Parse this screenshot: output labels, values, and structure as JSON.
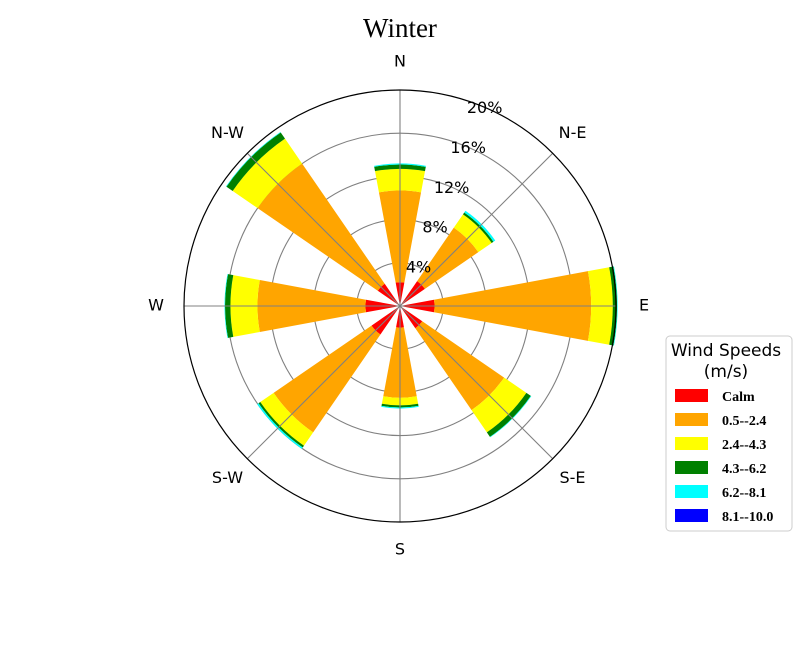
{
  "chart_data": {
    "type": "windrose",
    "title": "Winter",
    "directions": [
      "N",
      "N-E",
      "E",
      "S-E",
      "S",
      "S-W",
      "W",
      "N-W"
    ],
    "radial_ticks": [
      "4%",
      "8%",
      "12%",
      "16%",
      "20%"
    ],
    "radial_tick_values": [
      4,
      8,
      12,
      16,
      20
    ],
    "rmax": 20,
    "legend": {
      "title_line1": "Wind Speeds",
      "title_line2": "(m/s)",
      "placement": "right"
    },
    "series": [
      {
        "name": "Calm",
        "color": "#ff0000",
        "values": [
          2.2,
          2.8,
          3.2,
          2.5,
          2.0,
          3.2,
          3.2,
          2.5
        ]
      },
      {
        "name": "0.5--2.4",
        "color": "#ffa500",
        "values": [
          8.5,
          6.0,
          14.5,
          9.2,
          6.5,
          11.0,
          10.0,
          13.5
        ]
      },
      {
        "name": "2.4--4.3",
        "color": "#ffff00",
        "values": [
          2.0,
          1.5,
          2.0,
          2.5,
          0.7,
          1.5,
          2.5,
          2.8
        ]
      },
      {
        "name": "4.3--6.2",
        "color": "#008000",
        "values": [
          0.4,
          0.2,
          0.4,
          0.5,
          0.2,
          0.2,
          0.5,
          0.7
        ]
      },
      {
        "name": "6.2--8.1",
        "color": "#00ffff",
        "values": [
          0.1,
          0.2,
          0.05,
          0.05,
          0.1,
          0.15,
          0.05,
          0.05
        ]
      },
      {
        "name": "8.1--10.0",
        "color": "#0000ff",
        "values": [
          0.0,
          0.0,
          0.0,
          0.0,
          0.0,
          0.0,
          0.0,
          0.0
        ]
      }
    ]
  }
}
